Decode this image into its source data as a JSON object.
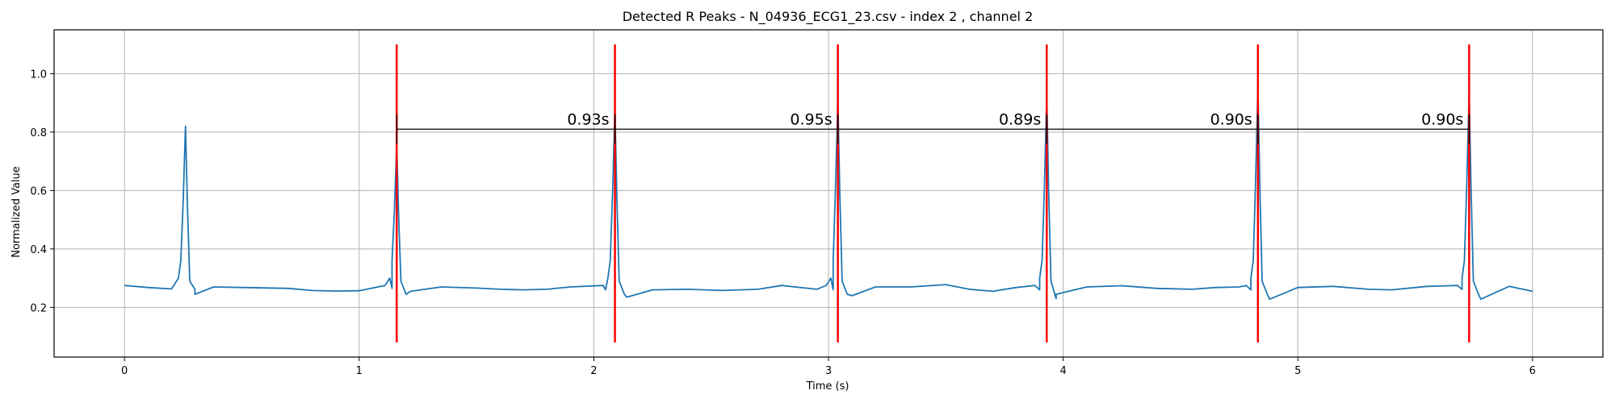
{
  "chart_data": {
    "type": "line",
    "title": "Detected R Peaks - N_04936_ECG1_23.csv - index 2 , channel 2",
    "xlabel": "Time (s)",
    "ylabel": "Normalized Value",
    "xlim": [
      -0.3,
      6.3
    ],
    "ylim": [
      0.03,
      1.15
    ],
    "x_ticks": [
      0,
      1,
      2,
      3,
      4,
      5,
      6
    ],
    "y_ticks": [
      0.2,
      0.4,
      0.6,
      0.8,
      1.0
    ],
    "x_tick_labels": [
      "0",
      "1",
      "2",
      "3",
      "4",
      "5",
      "6"
    ],
    "y_tick_labels": [
      "0.2",
      "0.4",
      "0.6",
      "0.8",
      "1.0"
    ],
    "grid": true,
    "series": [
      {
        "color": "#1f77b4",
        "baseline": [
          [
            0.0,
            0.275
          ],
          [
            0.1,
            0.268
          ],
          [
            0.2,
            0.263
          ],
          [
            0.3,
            0.262
          ],
          [
            0.38,
            0.27
          ],
          [
            0.5,
            0.268
          ],
          [
            0.7,
            0.265
          ],
          [
            0.8,
            0.258
          ],
          [
            0.9,
            0.256
          ],
          [
            1.0,
            0.257
          ],
          [
            1.08,
            0.27
          ],
          [
            1.14,
            0.265
          ],
          [
            1.22,
            0.255
          ],
          [
            1.35,
            0.27
          ],
          [
            1.5,
            0.266
          ],
          [
            1.6,
            0.262
          ],
          [
            1.7,
            0.26
          ],
          [
            1.8,
            0.262
          ],
          [
            1.9,
            0.27
          ],
          [
            2.05,
            0.26
          ],
          [
            2.14,
            0.235
          ],
          [
            2.25,
            0.26
          ],
          [
            2.4,
            0.262
          ],
          [
            2.55,
            0.258
          ],
          [
            2.7,
            0.262
          ],
          [
            2.8,
            0.275
          ],
          [
            2.95,
            0.262
          ],
          [
            3.02,
            0.26
          ],
          [
            3.1,
            0.24
          ],
          [
            3.2,
            0.27
          ],
          [
            3.35,
            0.27
          ],
          [
            3.5,
            0.278
          ],
          [
            3.6,
            0.262
          ],
          [
            3.7,
            0.255
          ],
          [
            3.8,
            0.268
          ],
          [
            3.9,
            0.26
          ],
          [
            3.97,
            0.23
          ],
          [
            4.1,
            0.27
          ],
          [
            4.25,
            0.274
          ],
          [
            4.4,
            0.265
          ],
          [
            4.55,
            0.262
          ],
          [
            4.65,
            0.268
          ],
          [
            4.75,
            0.27
          ],
          [
            4.8,
            0.26
          ],
          [
            4.88,
            0.228
          ],
          [
            5.0,
            0.268
          ],
          [
            5.15,
            0.272
          ],
          [
            5.3,
            0.262
          ],
          [
            5.4,
            0.26
          ],
          [
            5.55,
            0.272
          ],
          [
            5.7,
            0.262
          ],
          [
            5.78,
            0.228
          ],
          [
            5.9,
            0.272
          ],
          [
            6.0,
            0.255
          ]
        ],
        "beats": [
          {
            "t": 0.26,
            "peak": 0.82
          },
          {
            "t": 1.16,
            "peak": 0.76
          },
          {
            "t": 2.09,
            "peak": 0.88
          },
          {
            "t": 3.04,
            "peak": 0.92
          },
          {
            "t": 3.93,
            "peak": 0.93
          },
          {
            "t": 4.83,
            "peak": 0.96
          },
          {
            "t": 5.73,
            "peak": 0.94
          }
        ]
      }
    ],
    "r_peaks": {
      "color": "#ff0000",
      "times": [
        1.16,
        2.09,
        3.04,
        3.93,
        4.83,
        5.73
      ],
      "y_range": [
        0.08,
        1.1
      ]
    },
    "intervals": {
      "y": 0.81,
      "tick_range": [
        0.76,
        0.86
      ],
      "color": "#000000",
      "labels": [
        "0.93s",
        "0.95s",
        "0.89s",
        "0.90s",
        "0.90s"
      ]
    }
  }
}
